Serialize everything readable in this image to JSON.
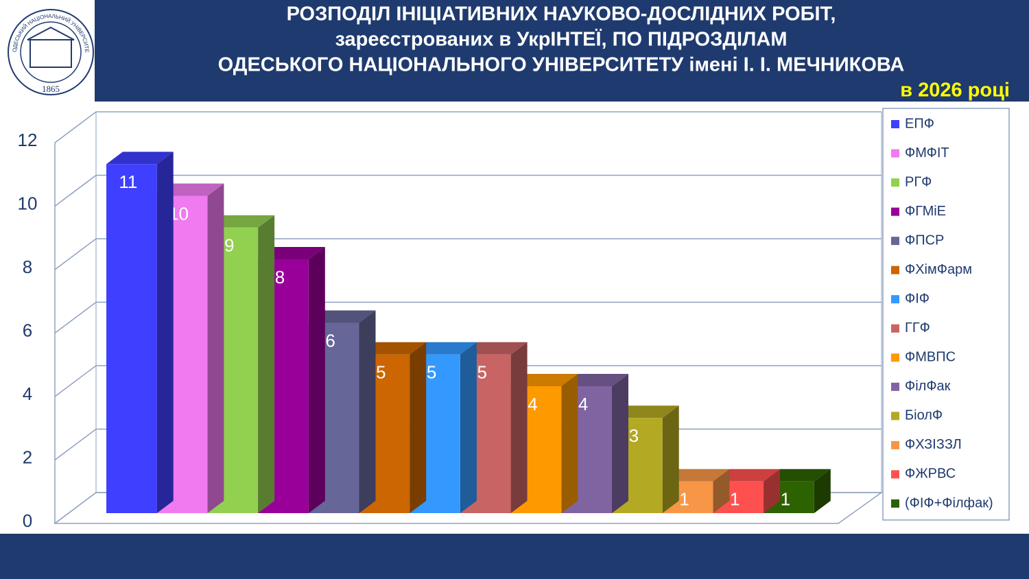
{
  "logo": {
    "year": "1865",
    "ring_text": "ОДЕСЬКИЙ НАЦІОНАЛЬНИЙ УНІВЕРСИТЕТ ІМЕНІ І.І. МЕЧНИКОВА"
  },
  "chart_data": {
    "type": "bar3d",
    "title_lines": [
      "РОЗПОДІЛ  ІНІЦІАТИВНИХ НАУКОВО-ДОСЛІДНИХ РОБІТ,",
      "зареєстрованих в УкрІНТЕЇ, ПО ПІДРОЗДІЛАМ",
      "ОДЕСЬКОГО НАЦІОНАЛЬНОГО УНІВЕРСИТЕТУ  імені І. І. МЕЧНИКОВА"
    ],
    "subtitle": "в 2026 році",
    "categories": [
      "ЕПФ",
      "ФМФІТ",
      "РГФ",
      "ФГМіЕ",
      "ФПСР",
      "ФХімФарм",
      "ФІФ",
      "ГГФ",
      "ФМВПС",
      "ФілФак",
      "БіолФ",
      "ФХЗІЗЗЛ",
      "ФЖРВС",
      "(ФІФ+Філфак)"
    ],
    "values": [
      11,
      10,
      9,
      8,
      6,
      5,
      5,
      5,
      4,
      4,
      3,
      1,
      1,
      1
    ],
    "colors": [
      "#3f3fff",
      "#f07af0",
      "#92d050",
      "#990099",
      "#666699",
      "#cc6600",
      "#3399ff",
      "#c86464",
      "#ff9900",
      "#8064a2",
      "#b3a922",
      "#f79646",
      "#ff5050",
      "#2d6200"
    ],
    "ylim": [
      0,
      12
    ],
    "yticks": [
      0,
      2,
      4,
      6,
      8,
      10,
      12
    ],
    "grid": true,
    "legend": "right"
  }
}
